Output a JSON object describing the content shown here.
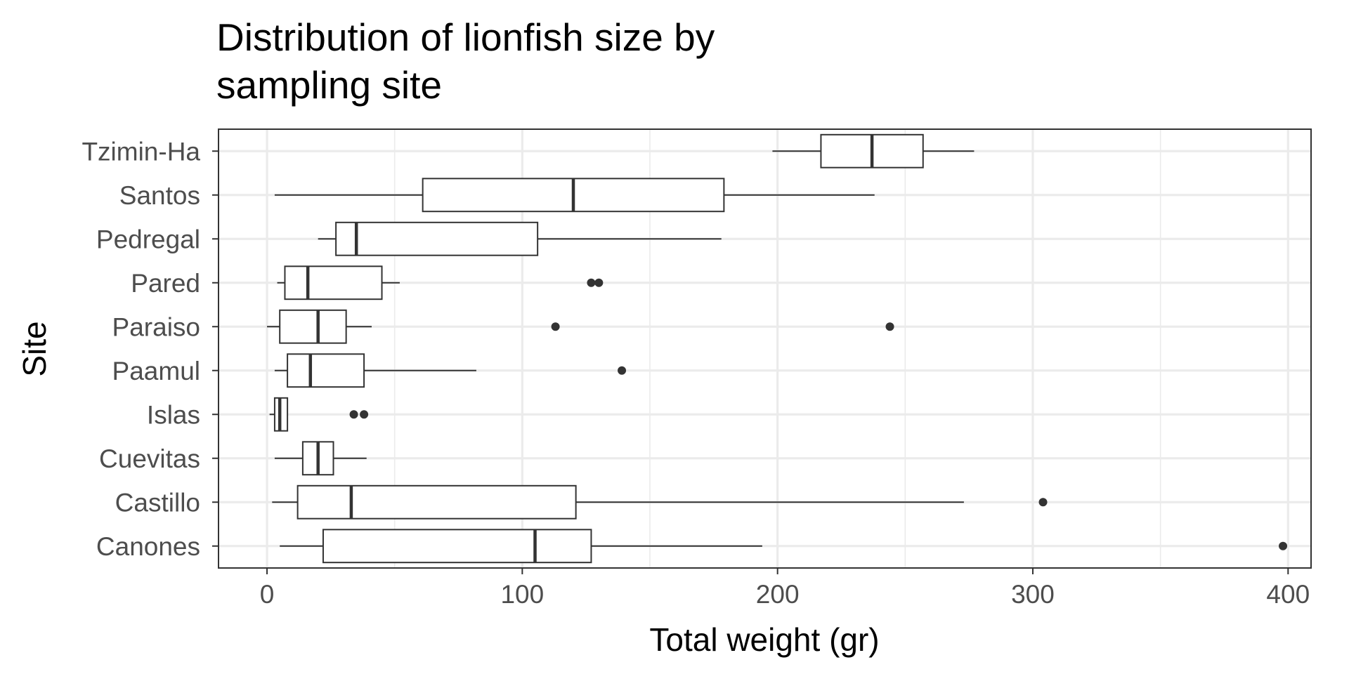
{
  "chart_data": {
    "type": "boxplot",
    "orientation": "horizontal",
    "title": "Distribution of lionfish size by sampling site",
    "title_lines": [
      "Distribution of lionfish size by",
      "sampling site"
    ],
    "xlabel": "Total weight (gr)",
    "ylabel": "Site",
    "xlim": [
      -19,
      409
    ],
    "x_ticks": [
      0,
      100,
      200,
      300,
      400
    ],
    "x_tick_labels": [
      "0",
      "100",
      "200",
      "300",
      "400"
    ],
    "grid": true,
    "legend": "none",
    "categories": [
      "Canones",
      "Castillo",
      "Cuevitas",
      "Islas",
      "Paamul",
      "Paraiso",
      "Pared",
      "Pedregal",
      "Santos",
      "Tzimin-Ha"
    ],
    "boxes": [
      {
        "site": "Canones",
        "whisker_low": 5,
        "q1": 22,
        "median": 105,
        "q3": 127,
        "whisker_high": 194,
        "outliers": [
          398
        ]
      },
      {
        "site": "Castillo",
        "whisker_low": 2,
        "q1": 12,
        "median": 33,
        "q3": 121,
        "whisker_high": 273,
        "outliers": [
          304
        ]
      },
      {
        "site": "Cuevitas",
        "whisker_low": 3,
        "q1": 14,
        "median": 20,
        "q3": 26,
        "whisker_high": 39,
        "outliers": []
      },
      {
        "site": "Islas",
        "whisker_low": 1,
        "q1": 3,
        "median": 5,
        "q3": 8,
        "whisker_high": 8,
        "outliers": [
          34,
          38
        ]
      },
      {
        "site": "Paamul",
        "whisker_low": 3,
        "q1": 8,
        "median": 17,
        "q3": 38,
        "whisker_high": 82,
        "outliers": [
          139
        ]
      },
      {
        "site": "Paraiso",
        "whisker_low": 0,
        "q1": 5,
        "median": 20,
        "q3": 31,
        "whisker_high": 41,
        "outliers": [
          113,
          244
        ]
      },
      {
        "site": "Pared",
        "whisker_low": 4,
        "q1": 7,
        "median": 16,
        "q3": 45,
        "whisker_high": 52,
        "outliers": [
          127,
          130
        ]
      },
      {
        "site": "Pedregal",
        "whisker_low": 20,
        "q1": 27,
        "median": 35,
        "q3": 106,
        "whisker_high": 178,
        "outliers": []
      },
      {
        "site": "Santos",
        "whisker_low": 3,
        "q1": 61,
        "median": 120,
        "q3": 179,
        "whisker_high": 238,
        "outliers": []
      },
      {
        "site": "Tzimin-Ha",
        "whisker_low": 198,
        "q1": 217,
        "median": 237,
        "q3": 257,
        "whisker_high": 277,
        "outliers": []
      }
    ],
    "colors": {
      "panel_border": "#333333",
      "grid_major": "#ebebeb",
      "box_line": "#333333",
      "box_fill": "#ffffff",
      "point": "#333333",
      "tick_text": "#4d4d4d",
      "title_text": "#000000"
    }
  }
}
